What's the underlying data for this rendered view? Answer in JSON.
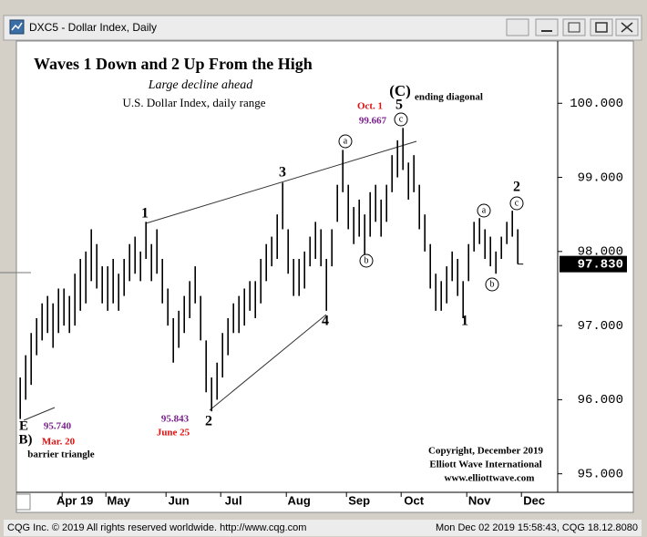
{
  "window": {
    "title": "DXC5 - Dollar Index, Daily",
    "status_left": "CQG Inc. © 2019 All rights reserved worldwide. http://www.cqg.com",
    "status_right": "Mon Dec 02 2019 15:58:43, CQG 18.12.8080"
  },
  "chart_data": {
    "type": "range_bar",
    "title": "Waves 1 Down and 2 Up From the High",
    "subtitle": "Large decline ahead",
    "annotations": [
      "U.S. Dollar Index, daily range",
      "(C)",
      "5",
      "ending diagonal",
      "Oct. 1",
      "99.667",
      "c",
      "a",
      "b",
      "a",
      "b",
      "c",
      "1",
      "3",
      "4",
      "2",
      "1",
      "2",
      "95.843",
      "June 25",
      "E",
      "95.740",
      "B)",
      "Mar. 20",
      "barrier triangle",
      "Copyright, December 2019",
      "Elliott Wave International",
      "www.elliottwave.com"
    ],
    "color": "#000000",
    "last_label": "97.830",
    "highs": [
      96.3,
      96.6,
      96.9,
      97.1,
      97.3,
      97.4,
      97.3,
      97.5,
      97.5,
      97.4,
      97.7,
      97.9,
      98.0,
      98.3,
      98.1,
      97.8,
      97.8,
      97.9,
      97.7,
      97.9,
      98.1,
      98.2,
      98.0,
      98.4,
      98.1,
      98.3,
      97.9,
      97.5,
      97.1,
      97.2,
      97.4,
      97.6,
      97.8,
      97.4,
      96.8,
      96.3,
      96.5,
      96.9,
      97.1,
      97.3,
      97.4,
      97.5,
      97.6,
      97.6,
      97.9,
      98.1,
      98.2,
      98.5,
      98.93,
      98.3,
      97.9,
      97.9,
      98.0,
      98.2,
      98.4,
      98.3,
      97.9,
      98.3,
      98.9,
      99.37,
      98.9,
      98.6,
      98.7,
      98.5,
      98.8,
      98.9,
      98.7,
      98.9,
      99.3,
      99.5,
      99.667,
      99.2,
      99.3,
      98.9,
      98.5,
      98.1,
      97.7,
      97.6,
      97.8,
      98.0,
      97.9,
      97.6,
      98.1,
      98.4,
      98.45,
      98.3,
      98.2,
      98.0,
      98.2,
      98.4,
      98.55,
      98.3
    ],
    "lows": [
      95.74,
      96.0,
      96.2,
      96.6,
      96.8,
      96.9,
      96.7,
      96.9,
      97.0,
      96.9,
      97.0,
      97.2,
      97.3,
      97.6,
      97.5,
      97.3,
      97.2,
      97.3,
      97.2,
      97.4,
      97.6,
      97.7,
      97.6,
      97.9,
      97.6,
      97.7,
      97.3,
      97.0,
      96.5,
      96.7,
      96.9,
      97.1,
      97.3,
      96.8,
      96.1,
      95.843,
      96.0,
      96.3,
      96.6,
      96.9,
      96.9,
      97.0,
      97.2,
      97.1,
      97.3,
      97.6,
      97.8,
      97.9,
      98.3,
      97.7,
      97.4,
      97.4,
      97.5,
      97.8,
      97.9,
      97.8,
      97.2,
      97.8,
      98.4,
      98.8,
      98.3,
      98.1,
      98.2,
      97.9,
      98.2,
      98.4,
      98.2,
      98.4,
      98.8,
      99.0,
      99.1,
      98.7,
      98.8,
      98.3,
      98.0,
      97.5,
      97.2,
      97.2,
      97.3,
      97.6,
      97.4,
      97.1,
      97.6,
      98.0,
      98.1,
      97.9,
      97.8,
      97.7,
      97.9,
      98.1,
      98.2,
      97.83
    ],
    "xlim": [
      -0.7,
      98.3
    ],
    "xticks": [
      {
        "value": 10,
        "label": "Apr 19"
      },
      {
        "value": 18,
        "label": "May"
      },
      {
        "value": 29,
        "label": "Jun"
      },
      {
        "value": 39,
        "label": "Jul"
      },
      {
        "value": 51,
        "label": "Aug"
      },
      {
        "value": 62,
        "label": "Sep"
      },
      {
        "value": 72,
        "label": "Oct"
      },
      {
        "value": 84,
        "label": "Nov"
      },
      {
        "value": 94,
        "label": "Dec"
      }
    ],
    "ylim": [
      94.75,
      100.84
    ],
    "yticks": [
      {
        "value": 95,
        "label": "95.000"
      },
      {
        "value": 96,
        "label": "96.000"
      },
      {
        "value": 97,
        "label": "97.000"
      },
      {
        "value": 98,
        "label": "98.000"
      },
      {
        "value": 99,
        "label": "99.000"
      },
      {
        "value": 100,
        "label": "100.000"
      }
    ]
  }
}
